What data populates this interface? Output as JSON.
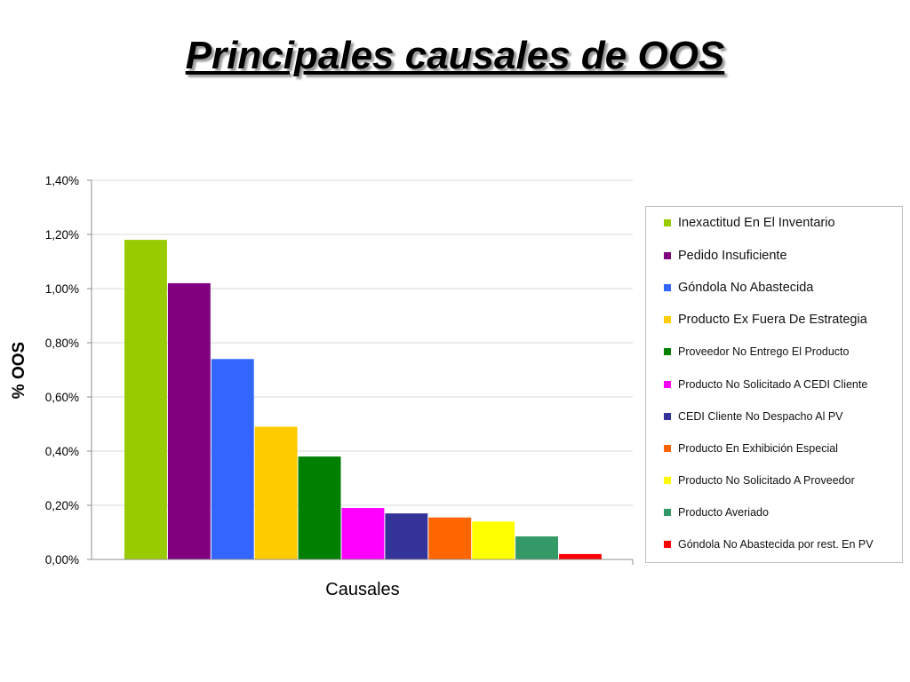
{
  "page": {
    "title": "Principales causales de OOS"
  },
  "chart_data": {
    "type": "bar",
    "title": "Principales causales de OOS",
    "xlabel": "Causales",
    "ylabel": "% OOS",
    "ylim": [
      0,
      1.4
    ],
    "yticks": [
      "0,00%",
      "0,20%",
      "0,40%",
      "0,60%",
      "0,80%",
      "1,00%",
      "1,20%",
      "1,40%"
    ],
    "grid": true,
    "legend_position": "right",
    "series": [
      {
        "name": "Inexactitud En El Inventario",
        "value": 1.18,
        "color": "#99cc00"
      },
      {
        "name": "Pedido Insuficiente",
        "value": 1.02,
        "color": "#800080"
      },
      {
        "name": "Góndola No Abastecida",
        "value": 0.74,
        "color": "#3366ff"
      },
      {
        "name": "Producto Ex Fuera De Estrategia",
        "value": 0.49,
        "color": "#ffcc00"
      },
      {
        "name": "Proveedor No Entrego El Producto",
        "value": 0.38,
        "color": "#008000"
      },
      {
        "name": "Producto No Solicitado A CEDI Cliente",
        "value": 0.19,
        "color": "#ff00ff"
      },
      {
        "name": "CEDI Cliente No Despacho Al PV",
        "value": 0.17,
        "color": "#333399"
      },
      {
        "name": "Producto En Exhibición Especial",
        "value": 0.155,
        "color": "#ff6600"
      },
      {
        "name": "Producto No Solicitado A Proveedor",
        "value": 0.14,
        "color": "#ffff00"
      },
      {
        "name": "Producto Averiado",
        "value": 0.085,
        "color": "#339966"
      },
      {
        "name": "Góndola No Abastecida por rest. En PV",
        "value": 0.02,
        "color": "#ff0000"
      }
    ]
  }
}
